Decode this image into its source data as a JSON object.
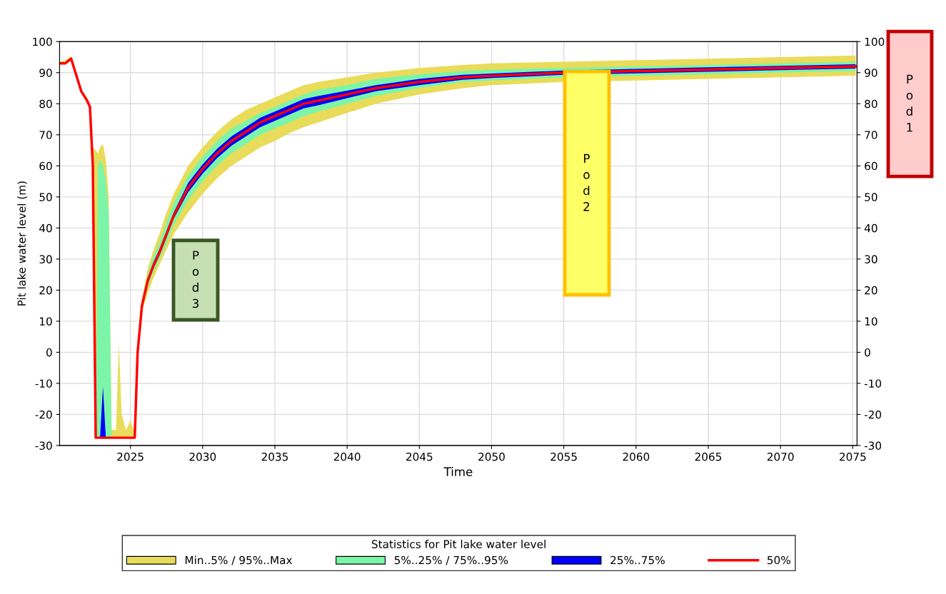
{
  "chart_data": {
    "type": "line",
    "xlabel": "Time",
    "ylabel": "Pit lake water level (m)",
    "legend_title": "Statistics for Pit lake water level",
    "x": [
      2020.1,
      2020.5,
      2020.9,
      2021.2,
      2021.6,
      2022.0,
      2022.2,
      2022.4,
      2022.6,
      2022.75,
      2022.9,
      2023.1,
      2023.3,
      2023.5,
      2023.7,
      2024.0,
      2024.2,
      2024.4,
      2024.7,
      2025.0,
      2025.3,
      2025.5,
      2025.8,
      2026.2,
      2026.6,
      2027,
      2027.5,
      2028,
      2029,
      2030,
      2031,
      2032,
      2033,
      2034,
      2035,
      2036,
      2037,
      2038,
      2040,
      2042,
      2045,
      2048,
      2050,
      2055,
      2060,
      2065,
      2070,
      2075.2
    ],
    "series": [
      {
        "name": "Min..5% / 95%..Max",
        "color": "#e8dc5a",
        "values": [
          null,
          null,
          null,
          null,
          null,
          null,
          null,
          null,
          null,
          null,
          null,
          null,
          null,
          null,
          null,
          null,
          null,
          null,
          null,
          null,
          null,
          null,
          null,
          null,
          null,
          null,
          null,
          null,
          null,
          null,
          null,
          null,
          null,
          null,
          null,
          null,
          null,
          null,
          null,
          null,
          null,
          null,
          null,
          null,
          null,
          null,
          null,
          null
        ],
        "lower": [
          93,
          93,
          94.5,
          90,
          84,
          81,
          79,
          60,
          -27.5,
          -27.5,
          -27.5,
          -27.5,
          -27.5,
          -27.5,
          -27.5,
          -27.5,
          -27.5,
          -27.5,
          -27.5,
          -27.5,
          -27.5,
          0,
          13,
          19,
          24,
          28,
          33,
          38,
          45,
          51,
          56,
          60,
          63,
          66,
          68,
          70.5,
          72.5,
          74,
          77,
          80,
          83,
          85,
          86,
          87,
          87.5,
          88,
          88.5,
          89
        ],
        "upper": [
          93.5,
          94,
          95.3,
          90.5,
          84.5,
          82,
          80,
          66,
          65,
          64,
          66,
          67,
          62,
          50,
          -25,
          -25,
          3,
          -20,
          -25,
          -22,
          -26,
          1,
          17,
          27,
          33,
          38,
          45,
          51,
          60,
          66,
          71,
          75,
          78,
          80,
          82,
          84,
          86,
          87,
          88.5,
          90,
          91.5,
          92.5,
          93,
          93.5,
          94,
          94.5,
          95,
          95.5
        ]
      },
      {
        "name": "5%..25% / 75%..95%",
        "color": "#7cf5a8",
        "values": [
          null,
          null,
          null,
          null,
          null,
          null,
          null,
          null,
          null,
          null,
          null,
          null,
          null,
          null,
          null,
          null,
          null,
          null,
          null,
          null,
          null,
          null,
          null,
          null,
          null,
          null,
          null,
          null,
          null,
          null,
          null,
          null,
          null,
          null,
          null,
          null,
          null,
          null,
          null,
          null,
          null,
          null,
          null,
          null,
          null,
          null,
          null,
          null
        ],
        "lower": [
          93,
          93,
          94.5,
          90,
          84,
          81,
          79,
          60,
          -27.5,
          -27.5,
          -27.5,
          -27.5,
          -27.5,
          -27.5,
          -27.5,
          -27.5,
          -27.5,
          -27.5,
          -27.5,
          -27.5,
          -27.5,
          0,
          14,
          21,
          26,
          30,
          35,
          41,
          49,
          55,
          60,
          64,
          67,
          70,
          72,
          74,
          76,
          77.5,
          80,
          82.5,
          85,
          87,
          87.5,
          88.5,
          89,
          89.5,
          90,
          90.5
        ],
        "upper": [
          93.3,
          93.3,
          94.8,
          90.3,
          84.3,
          81.3,
          79.5,
          62,
          -27.5,
          60,
          62,
          60,
          55,
          45,
          -27.5,
          -27.5,
          -27.5,
          -27.5,
          -27.5,
          -27.5,
          -27.5,
          1,
          16,
          25,
          31,
          35,
          42,
          48,
          57,
          63,
          68,
          72,
          74.5,
          77,
          79,
          81,
          83,
          84.5,
          86,
          88,
          89.5,
          90.5,
          91,
          91.5,
          92,
          92.5,
          93,
          93.5
        ]
      },
      {
        "name": "25%..75%",
        "color": "#0000ff",
        "values": [
          null,
          null,
          null,
          null,
          null,
          null,
          null,
          null,
          null,
          null,
          null,
          null,
          null,
          null,
          null,
          null,
          null,
          null,
          null,
          null,
          null,
          null,
          null,
          null,
          null,
          null,
          null,
          null,
          null,
          null,
          null,
          null,
          null,
          null,
          null,
          null,
          null,
          null,
          null,
          null,
          null,
          null,
          null,
          null,
          null,
          null,
          null,
          null
        ],
        "lower": [
          93,
          93,
          94.5,
          90,
          84,
          81,
          79,
          60,
          -27.5,
          -27.5,
          -27.5,
          -27.5,
          -27.5,
          -27.5,
          -27.5,
          -27.5,
          -27.5,
          -27.5,
          -27.5,
          -27.5,
          -27.5,
          0,
          15,
          22.5,
          27,
          31,
          37,
          43,
          51.5,
          57.5,
          62.5,
          66.5,
          69.5,
          72.5,
          74.5,
          76.5,
          78.5,
          79.5,
          81.8,
          84,
          86,
          87.7,
          88.3,
          89.3,
          89.8,
          90.3,
          90.8,
          91.3
        ],
        "upper": [
          93,
          93,
          94.5,
          90,
          84,
          81,
          79,
          60,
          -27.5,
          -27.5,
          -27.5,
          -11,
          -27.5,
          -27.5,
          -27.5,
          -27.5,
          -27.5,
          -27.5,
          -27.5,
          -27.5,
          -27.5,
          0,
          15,
          23.5,
          29,
          33,
          39,
          45,
          54.5,
          60.5,
          65.5,
          69.5,
          72.5,
          75.5,
          77.5,
          79.5,
          81.5,
          82.5,
          84.2,
          86,
          88,
          89.3,
          89.7,
          90.7,
          91.2,
          91.7,
          92.2,
          92.7
        ]
      },
      {
        "name": "50%",
        "color": "#ff0000",
        "values": [
          93,
          93,
          94.5,
          90,
          84,
          81,
          79,
          60,
          -27.5,
          -27.5,
          -27.5,
          -27.5,
          -27.5,
          -27.5,
          -27.5,
          -27.5,
          -27.5,
          -27.5,
          -27.5,
          -27.5,
          -27.5,
          0,
          15,
          23,
          28,
          32,
          38,
          44,
          53,
          59,
          64,
          68,
          71,
          74,
          76,
          78,
          80,
          81,
          83,
          85,
          87,
          88.5,
          89,
          90,
          90.5,
          91,
          91.5,
          92
        ]
      }
    ],
    "xlim": [
      2020.1,
      2075.3
    ],
    "xticks": [
      2025,
      2030,
      2035,
      2040,
      2045,
      2050,
      2055,
      2060,
      2065,
      2070,
      2075
    ],
    "ylim": [
      -30,
      100
    ],
    "yticks": [
      -30,
      -20,
      -10,
      0,
      10,
      20,
      30,
      40,
      50,
      60,
      70,
      80,
      90,
      100
    ],
    "y2lim": [
      -30,
      100
    ],
    "y2ticks": [
      -30,
      -20,
      -10,
      0,
      10,
      20,
      30,
      40,
      50,
      60,
      70,
      80,
      90,
      100
    ],
    "grid": true,
    "legend": "bottom",
    "annotations": [
      "Pod1",
      "Pod2",
      "Pod3"
    ]
  }
}
